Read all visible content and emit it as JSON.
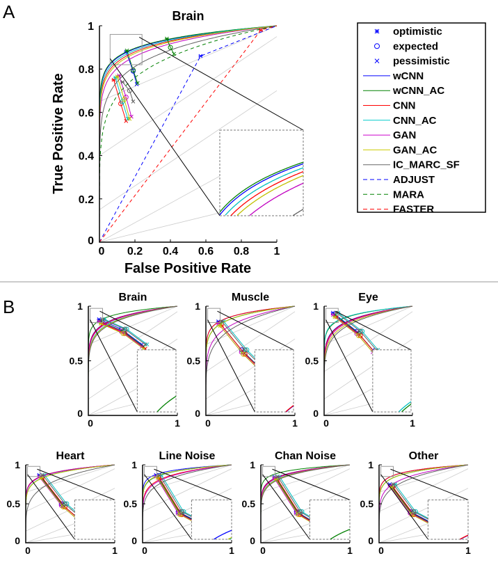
{
  "panel_labels": [
    "A",
    "B"
  ],
  "chart_data": [
    {
      "type": "line",
      "title": "Brain",
      "xlabel": "False Positive Rate",
      "ylabel": "True Positive Rate",
      "xlim": [
        0,
        1
      ],
      "ylim": [
        0,
        1
      ],
      "xticks": [
        "0",
        "0.2",
        "0.4",
        "0.6",
        "0.8",
        "1"
      ],
      "yticks": [
        "0",
        "0.2",
        "0.4",
        "0.6",
        "0.8",
        "1"
      ],
      "legend": {
        "placement": "right",
        "entries": [
          "optimistic",
          "expected",
          "pessimistic",
          "wCNN",
          "wCNN_AC",
          "CNN",
          "CNN_AC",
          "GAN",
          "GAN_AC",
          "IC_MARC_SF",
          "ADJUST",
          "MARA",
          "FASTER"
        ]
      },
      "series": [
        {
          "name": "wCNN",
          "color": "#0000ff",
          "curve_exponent": 0.07,
          "points": [
            [
              0.15,
              0.88
            ],
            [
              0.19,
              0.79
            ],
            [
              0.21,
              0.73
            ]
          ]
        },
        {
          "name": "wCNN_AC",
          "color": "#008000",
          "curve_exponent": 0.068,
          "points": [
            [
              0.155,
              0.885
            ],
            [
              0.19,
              0.795
            ],
            [
              0.215,
              0.735
            ]
          ]
        },
        {
          "name": "CNN",
          "color": "#ff0000",
          "curve_exponent": 0.08,
          "points": [
            [
              0.08,
              0.75
            ],
            [
              0.12,
              0.64
            ],
            [
              0.15,
              0.56
            ]
          ]
        },
        {
          "name": "CNN_AC",
          "color": "#00c0c0",
          "curve_exponent": 0.075,
          "points": [
            [
              0.09,
              0.76
            ],
            [
              0.13,
              0.65
            ],
            [
              0.16,
              0.57
            ]
          ]
        },
        {
          "name": "GAN",
          "color": "#c000c0",
          "curve_exponent": 0.095,
          "points": [
            [
              0.11,
              0.77
            ],
            [
              0.15,
              0.67
            ],
            [
              0.18,
              0.58
            ]
          ]
        },
        {
          "name": "GAN_AC",
          "color": "#c0c000",
          "curve_exponent": 0.085,
          "points": [
            [
              0.1,
              0.765
            ],
            [
              0.14,
              0.66
            ],
            [
              0.17,
              0.57
            ]
          ]
        },
        {
          "name": "IC_MARC_SF",
          "color": "#606060",
          "curve_exponent": 0.13,
          "points": [
            [
              0.13,
              0.74
            ],
            [
              0.17,
              0.7
            ],
            [
              0.19,
              0.65
            ]
          ]
        },
        {
          "name": "ADJUST",
          "color": "#0000ff",
          "dashed": true,
          "points": [
            [
              0.57,
              0.86
            ]
          ]
        },
        {
          "name": "MARA",
          "color": "#008000",
          "dashed": true,
          "points": [
            [
              0.38,
              0.94
            ],
            [
              0.4,
              0.9
            ],
            [
              0.42,
              0.87
            ]
          ]
        },
        {
          "name": "FASTER",
          "color": "#ff0000",
          "dashed": true,
          "points": [
            [
              0.91,
              0.98
            ]
          ]
        }
      ]
    },
    {
      "type": "line",
      "title": "Brain",
      "xticks": [
        "0",
        "1"
      ],
      "yticks": [
        "0",
        "0.5",
        "1"
      ],
      "points_offset": [
        [
          0.12,
          0.88
        ],
        [
          0.37,
          0.79
        ],
        [
          0.6,
          0.65
        ]
      ]
    },
    {
      "type": "line",
      "title": "Muscle",
      "xticks": [
        "0",
        "1"
      ],
      "yticks": [
        "0",
        "0.5",
        "1"
      ],
      "points_offset": [
        [
          0.14,
          0.86
        ],
        [
          0.4,
          0.6
        ],
        [
          0.65,
          0.4
        ]
      ]
    },
    {
      "type": "line",
      "title": "Eye",
      "xticks": [
        "0",
        "1"
      ],
      "yticks": [
        "0",
        "0.5",
        "1"
      ],
      "points_offset": [
        [
          0.1,
          0.94
        ],
        [
          0.37,
          0.77
        ],
        [
          0.55,
          0.6
        ]
      ]
    },
    {
      "type": "line",
      "title": "Heart",
      "xticks": [
        "0",
        "1"
      ],
      "yticks": [
        "0",
        "0.5",
        "1"
      ],
      "points_offset": [
        [
          0.15,
          0.87
        ],
        [
          0.4,
          0.5
        ],
        [
          0.65,
          0.25
        ]
      ]
    },
    {
      "type": "line",
      "title": "Line Noise",
      "xticks": [
        "0",
        "1"
      ],
      "yticks": [
        "0",
        "0.5",
        "1"
      ],
      "points_offset": [
        [
          0.15,
          0.87
        ],
        [
          0.4,
          0.4
        ],
        [
          0.65,
          0.25
        ]
      ]
    },
    {
      "type": "line",
      "title": "Chan Noise",
      "xticks": [
        "0",
        "1"
      ],
      "yticks": [
        "0",
        "0.5",
        "1"
      ],
      "points_offset": [
        [
          0.15,
          0.85
        ],
        [
          0.4,
          0.4
        ],
        [
          0.62,
          0.25
        ]
      ]
    },
    {
      "type": "line",
      "title": "Other",
      "xticks": [
        "0",
        "1"
      ],
      "yticks": [
        "0",
        "0.5",
        "1"
      ],
      "points_offset": [
        [
          0.12,
          0.75
        ],
        [
          0.35,
          0.4
        ],
        [
          0.6,
          0.25
        ]
      ]
    }
  ]
}
